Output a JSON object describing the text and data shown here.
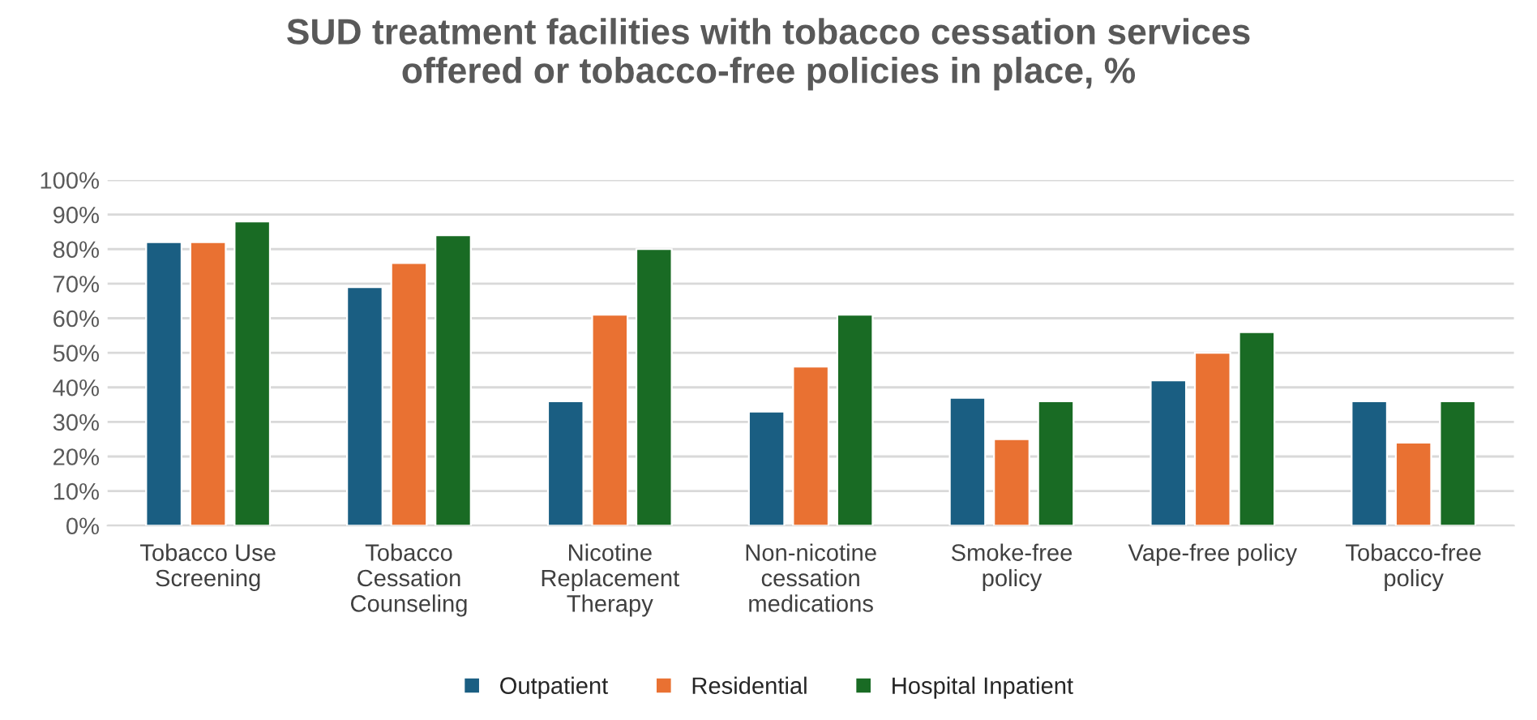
{
  "chart_data": {
    "type": "bar",
    "title": "SUD treatment facilities with tobacco cessation services\noffered or tobacco-free policies in place, %",
    "categories": [
      "Tobacco Use\nScreening",
      "Tobacco\nCessation\nCounseling",
      "Nicotine\nReplacement\nTherapy",
      "Non-nicotine\ncessation\nmedications",
      "Smoke-free\npolicy",
      "Vape-free policy",
      "Tobacco-free\npolicy"
    ],
    "series": [
      {
        "name": "Outpatient",
        "color": "#1a5e82",
        "values": [
          82,
          69,
          36,
          33,
          37,
          42,
          36
        ]
      },
      {
        "name": "Residential",
        "color": "#e97132",
        "values": [
          82,
          76,
          61,
          46,
          25,
          50,
          24
        ]
      },
      {
        "name": "Hospital Inpatient",
        "color": "#196b24",
        "values": [
          88,
          84,
          80,
          61,
          36,
          56,
          36
        ]
      }
    ],
    "ylim": [
      0,
      100
    ],
    "yticks": [
      {
        "value": 0,
        "label": "0%"
      },
      {
        "value": 10,
        "label": "10%"
      },
      {
        "value": 20,
        "label": "20%"
      },
      {
        "value": 30,
        "label": "30%"
      },
      {
        "value": 40,
        "label": "40%"
      },
      {
        "value": 50,
        "label": "50%"
      },
      {
        "value": 60,
        "label": "60%"
      },
      {
        "value": 70,
        "label": "70%"
      },
      {
        "value": 80,
        "label": "80%"
      },
      {
        "value": 90,
        "label": "90%"
      },
      {
        "value": 100,
        "label": "100%"
      }
    ],
    "grid": "y",
    "legend": "bottom"
  }
}
